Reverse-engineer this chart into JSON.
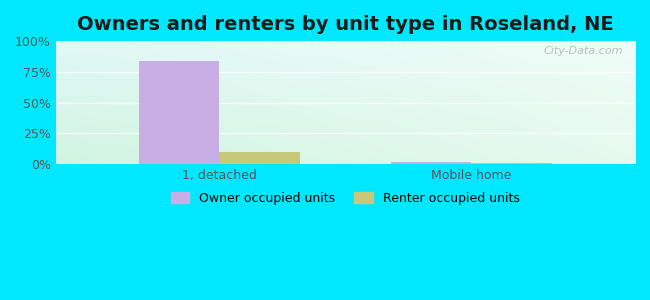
{
  "title": "Owners and renters by unit type in Roseland, NE",
  "categories": [
    "1, detached",
    "Mobile home"
  ],
  "owner_values": [
    84,
    1.5
  ],
  "renter_values": [
    10,
    1.0
  ],
  "owner_color": "#c9aee5",
  "renter_color": "#c8c87a",
  "yticks": [
    0,
    25,
    50,
    75,
    100
  ],
  "ytick_labels": [
    "0%",
    "25%",
    "50%",
    "75%",
    "100%"
  ],
  "outer_bg": "#00e8ff",
  "bar_width": 0.32,
  "legend_owner": "Owner occupied units",
  "legend_renter": "Renter occupied units",
  "title_fontsize": 14,
  "watermark": "City-Data.com"
}
